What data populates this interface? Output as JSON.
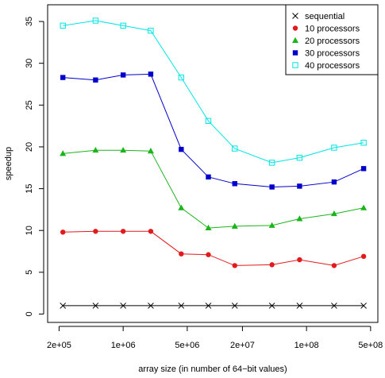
{
  "chart_data": {
    "type": "line",
    "xlabel": "array size (in number of 64−bit values)",
    "ylabel": "speedup",
    "xscale": "log",
    "xlim": [
      150000,
      600000000
    ],
    "ylim": [
      -1,
      37
    ],
    "xticks": [
      200000,
      1000000,
      5000000,
      20000000,
      100000000,
      500000000
    ],
    "xtick_labels": [
      "2e+05",
      "1e+06",
      "5e+06",
      "2e+07",
      "1e+08",
      "5e+08"
    ],
    "yticks": [
      0,
      5,
      10,
      15,
      20,
      25,
      30,
      35
    ],
    "ytick_labels": [
      "0",
      "5",
      "10",
      "15",
      "20",
      "25",
      "30",
      "35"
    ],
    "x": [
      220000,
      500000,
      1000000,
      2000000,
      4300000,
      8500000,
      16500000,
      42000000,
      84000000,
      200000000,
      420000000
    ],
    "legend_position": "top-right",
    "grid": false,
    "series": [
      {
        "name": "sequential",
        "color": "#000000",
        "marker": "x",
        "values": [
          1,
          1,
          1,
          1,
          1,
          1,
          1,
          1,
          1,
          1,
          1
        ]
      },
      {
        "name": "10 processors",
        "color": "#e31a1c",
        "marker": "circle",
        "values": [
          9.8,
          9.9,
          9.9,
          9.9,
          7.2,
          7.1,
          5.8,
          5.9,
          6.5,
          5.8,
          6.9
        ]
      },
      {
        "name": "20 processors",
        "color": "#1bb51b",
        "marker": "triangle",
        "values": [
          19.2,
          19.6,
          19.6,
          19.5,
          12.7,
          10.3,
          10.5,
          10.6,
          11.4,
          12.0,
          12.7
        ]
      },
      {
        "name": "30 processors",
        "color": "#0000cc",
        "marker": "square",
        "values": [
          28.3,
          28.0,
          28.6,
          28.7,
          19.7,
          16.4,
          15.6,
          15.2,
          15.3,
          15.8,
          17.4
        ]
      },
      {
        "name": "40 processors",
        "color": "#00e5e5",
        "marker": "open-square",
        "values": [
          34.5,
          35.1,
          34.5,
          33.9,
          28.3,
          23.1,
          19.8,
          18.1,
          18.7,
          19.9,
          20.5
        ]
      }
    ]
  }
}
